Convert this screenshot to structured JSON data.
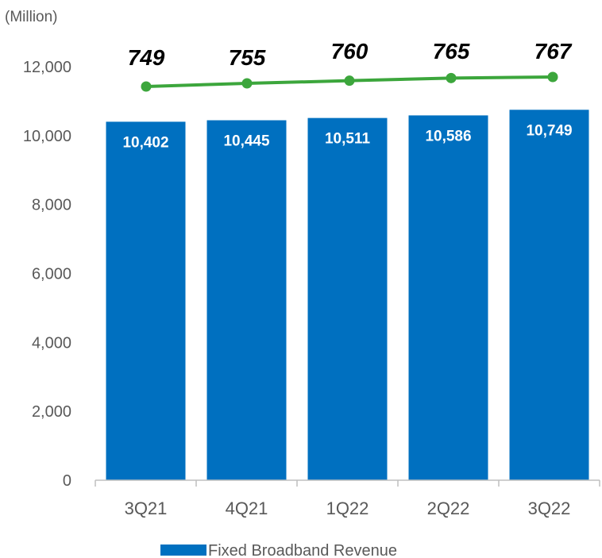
{
  "chart_data": {
    "type": "bar",
    "unit_label": "(Million)",
    "categories": [
      "3Q21",
      "4Q21",
      "1Q22",
      "2Q22",
      "3Q22"
    ],
    "series": [
      {
        "name": "Fixed Broadband Revenue",
        "type": "bar",
        "color": "#0070C0",
        "values": [
          10402,
          10445,
          10511,
          10586,
          10749
        ],
        "labels": [
          "10,402",
          "10,445",
          "10,511",
          "10,586",
          "10,749"
        ]
      },
      {
        "type": "line",
        "color": "#3CA63C",
        "values": [
          749,
          755,
          760,
          765,
          767
        ],
        "labels": [
          "749",
          "755",
          "760",
          "765",
          "767"
        ]
      }
    ],
    "ylim": [
      0,
      12000
    ],
    "yticks": [
      0,
      2000,
      4000,
      6000,
      8000,
      10000,
      12000
    ],
    "ytick_labels": [
      "0",
      "2,000",
      "4,000",
      "6,000",
      "8,000",
      "10,000",
      "12,000"
    ],
    "legend": {
      "position": "bottom",
      "entries": [
        "Fixed Broadband Revenue"
      ]
    },
    "grid": false
  }
}
